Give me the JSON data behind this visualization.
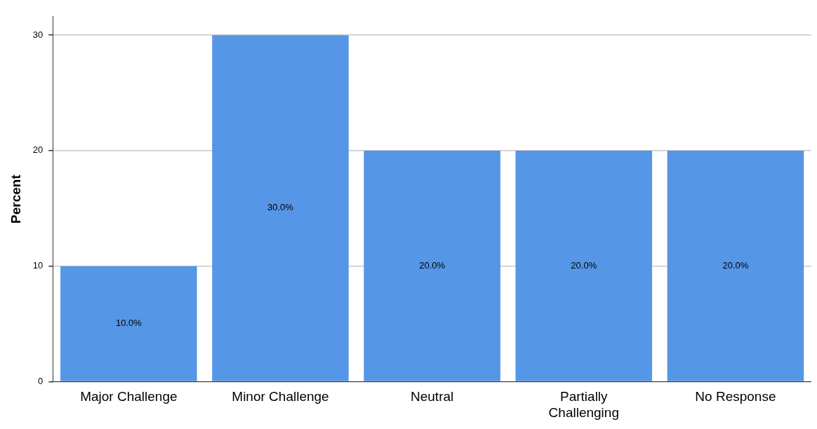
{
  "chart_data": {
    "type": "bar",
    "ylabel": "Percent",
    "categories": [
      "Major Challenge",
      "Minor Challenge",
      "Neutral",
      "Partially Challenging",
      "No Response"
    ],
    "values": [
      10,
      30,
      20,
      20,
      20
    ],
    "value_labels": [
      "10.0%",
      "30.0%",
      "20.0%",
      "20.0%",
      "20.0%"
    ],
    "color": "#5596e6",
    "ylim": [
      0,
      31.6
    ],
    "yticks": [
      0,
      10,
      20,
      30
    ],
    "grid": "y",
    "legend": false
  }
}
